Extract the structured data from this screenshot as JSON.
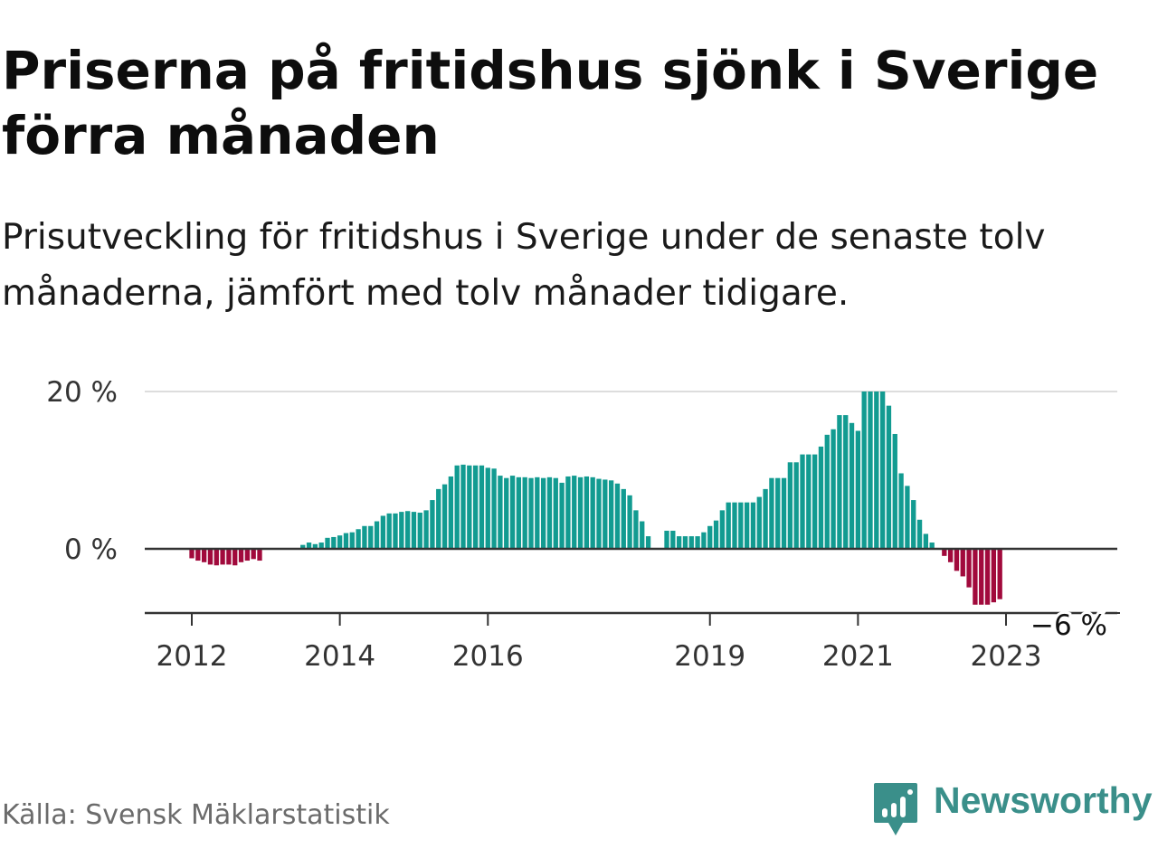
{
  "title": "Priserna på fritidshus sjönk i Sverige förra månaden",
  "subtitle": "Prisutveckling för fritidshus i Sverige under de senaste tolv månaderna, jämfört med tolv månader tidigare.",
  "source": "Källa: Svensk Mäklarstatistik",
  "brand": {
    "name": "Newsworthy",
    "icon": "newsworthy-logo-icon",
    "color": "#3a8f8a"
  },
  "colors": {
    "positive": "#129b91",
    "negative": "#a10a3c",
    "axis": "#333333",
    "grid": "#dddddd",
    "tick_text": "#333333"
  },
  "chart_data": {
    "type": "bar",
    "ylabel": "",
    "xlabel": "",
    "ylim": [
      -8.5,
      20
    ],
    "y_ticks": [
      {
        "value": 20,
        "label": "20 %"
      },
      {
        "value": 0,
        "label": "0 %"
      }
    ],
    "x_ticks": [
      "2012",
      "2014",
      "2016",
      "2019",
      "2021",
      "2023"
    ],
    "x_tick_dates": [
      "2012-01",
      "2014-01",
      "2016-01",
      "2019-01",
      "2021-01",
      "2023-01"
    ],
    "grid": true,
    "last_value_label": "−6 %",
    "start": "2011-01",
    "frequency": "monthly",
    "values": [
      null,
      null,
      null,
      null,
      null,
      null,
      null,
      null,
      null,
      null,
      null,
      null,
      -1.2,
      -1.5,
      -1.7,
      -2.0,
      -2.1,
      -2.0,
      -2.0,
      -2.1,
      -1.7,
      -1.5,
      -1.3,
      -1.5,
      null,
      null,
      null,
      null,
      null,
      null,
      0.5,
      0.8,
      0.6,
      0.8,
      1.4,
      1.5,
      1.7,
      2.0,
      2.1,
      2.5,
      2.9,
      2.9,
      3.5,
      4.2,
      4.5,
      4.5,
      4.7,
      4.8,
      4.7,
      4.6,
      4.9,
      6.2,
      7.6,
      8.2,
      9.2,
      10.6,
      10.7,
      10.6,
      10.6,
      10.6,
      10.3,
      10.2,
      9.3,
      9.0,
      9.3,
      9.1,
      9.1,
      9.0,
      9.1,
      9.0,
      9.1,
      9.0,
      8.4,
      9.2,
      9.3,
      9.1,
      9.2,
      9.1,
      8.9,
      8.8,
      8.7,
      8.3,
      7.6,
      6.8,
      4.9,
      3.5,
      1.6,
      null,
      null,
      2.3,
      2.3,
      1.6,
      1.6,
      1.6,
      1.6,
      2.1,
      2.9,
      3.6,
      4.9,
      5.9,
      5.9,
      5.9,
      5.9,
      5.9,
      6.6,
      7.6,
      9.0,
      9.0,
      9.0,
      11.0,
      11.0,
      12.0,
      12.0,
      12.0,
      13.0,
      14.5,
      15.2,
      17.0,
      17.0,
      16.0,
      15.0,
      20.0,
      20.0,
      20.0,
      20.0,
      18.2,
      14.6,
      9.6,
      8.0,
      6.2,
      3.7,
      1.9,
      0.8,
      null,
      -0.9,
      -1.7,
      -2.8,
      -3.5,
      -4.9,
      -7.1,
      -7.1,
      -7.1,
      -6.8,
      -6.4
    ]
  }
}
